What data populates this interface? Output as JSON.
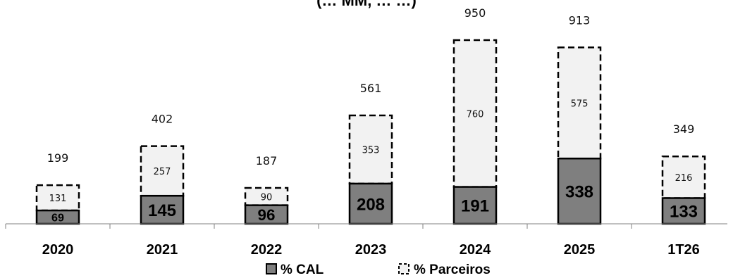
{
  "chart_data": {
    "type": "bar",
    "stacked": true,
    "title": "(… MM, … …)",
    "categories": [
      "2020",
      "2021",
      "2022",
      "2023",
      "2024",
      "2025",
      "1T26"
    ],
    "series": [
      {
        "name": "% CAL",
        "values": [
          69,
          145,
          96,
          208,
          191,
          338,
          133
        ]
      },
      {
        "name": "% Parceiros",
        "values": [
          131,
          257,
          90,
          353,
          760,
          575,
          216
        ]
      }
    ],
    "totals": [
      199,
      402,
      187,
      561,
      950,
      913,
      349
    ],
    "legend_position": "bottom",
    "grid": false,
    "colors": {
      "cal": "#7f7f7f",
      "parceiros": "#f2f2f2",
      "border": "#000000"
    }
  }
}
